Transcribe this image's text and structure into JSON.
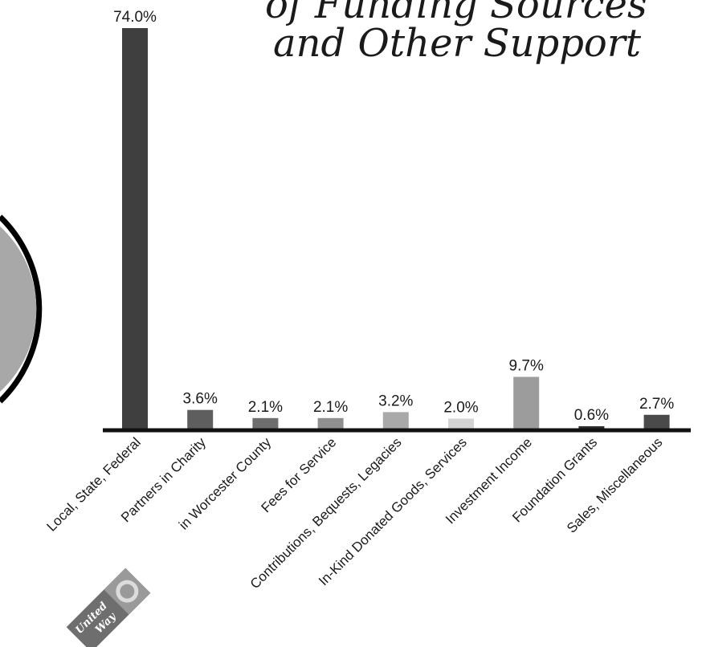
{
  "title_lines": [
    "of Funding Sources",
    "and Other Support"
  ],
  "logo": {
    "text_line1": "United",
    "text_line2": "Way"
  },
  "chart_data": {
    "type": "bar",
    "title": "",
    "xlabel": "",
    "ylabel": "",
    "ylim": [
      0,
      74
    ],
    "grid": false,
    "categories": [
      "Local, State, Federal",
      "Partners in Charity",
      "in Worcester County",
      "Fees for Service",
      "Contributions, Bequests, Legacies",
      "In-Kind Donated Goods, Services",
      "Investment Income",
      "Foundation Grants",
      "Sales, Miscellaneous"
    ],
    "values": [
      74.0,
      3.6,
      2.1,
      2.1,
      3.2,
      2.0,
      9.7,
      0.6,
      2.7
    ],
    "value_labels": [
      "74.0%",
      "3.6%",
      "2.1%",
      "2.1%",
      "3.2%",
      "2.0%",
      "9.7%",
      "0.6%",
      "2.7%"
    ],
    "colors": [
      "#3f3f3f",
      "#5e5e5e",
      "#6e6e6e",
      "#8f8f8f",
      "#a9a9a9",
      "#d4d4d4",
      "#9c9c9c",
      "#2d2d2d",
      "#4a4a4a"
    ]
  }
}
